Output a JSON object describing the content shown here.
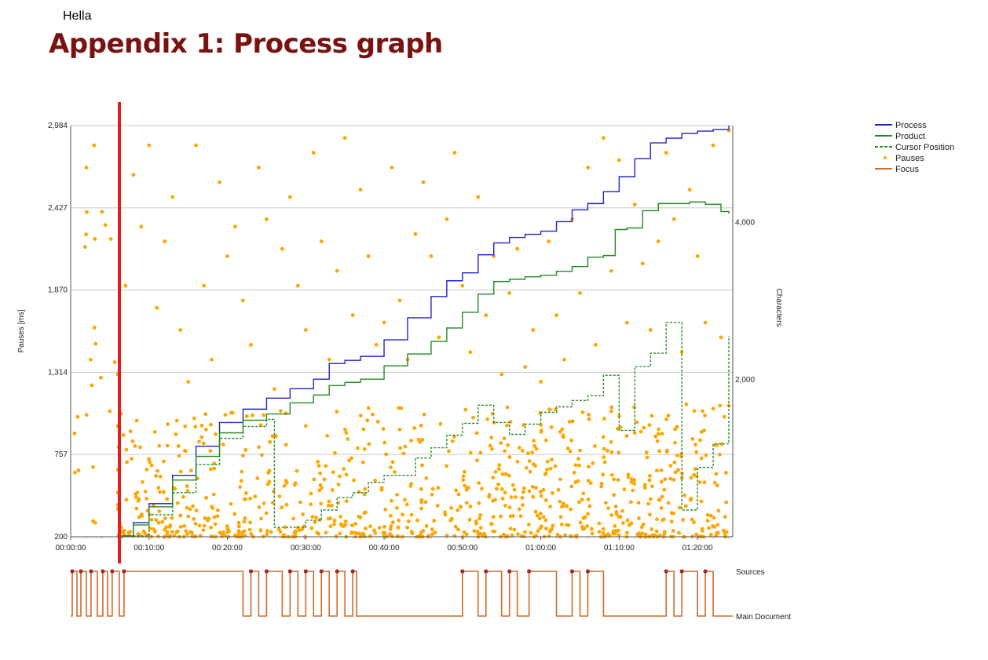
{
  "header": {
    "author": "Hella",
    "title": "Appendix 1: Process graph"
  },
  "chart_data": {
    "type": "line",
    "x_unit": "hh:mm:ss",
    "x_range_minutes": [
      0,
      84.5
    ],
    "x_ticks": [
      "00:00:00",
      "00:10:00",
      "00:20:00",
      "00:30:00",
      "00:40:00",
      "00:50:00",
      "01:00:00",
      "01:10:00",
      "01:20:00"
    ],
    "ylabel_left": "Pauses [ms]",
    "y_left_ticks": [
      "200",
      "757",
      "1,314",
      "1,870",
      "2,427",
      "2,984"
    ],
    "ylim_left": [
      200,
      2984
    ],
    "ylabel_right": "Characters",
    "y_right_ticks": [
      "2,000",
      "4,000"
    ],
    "ylim_right": [
      0,
      5220
    ],
    "legend": {
      "position": "top-right",
      "entries": [
        {
          "label": "Process",
          "color": "#2222cc",
          "style": "solid"
        },
        {
          "label": "Product",
          "color": "#228b22",
          "style": "solid"
        },
        {
          "label": "Cursor Position",
          "color": "#228b22",
          "style": "dashed"
        },
        {
          "label": "Pauses",
          "color": "#ffa500",
          "style": "dot"
        },
        {
          "label": "Focus",
          "color": "#cd6b2a",
          "style": "solid"
        }
      ]
    },
    "series": [
      {
        "name": "Process",
        "color": "#2222cc",
        "x": [
          6.5,
          8,
          10,
          13,
          16,
          19,
          22,
          25,
          28,
          31,
          33,
          35,
          37,
          40,
          43,
          46,
          48,
          50,
          52,
          54,
          56,
          58,
          60,
          62,
          64,
          66,
          68,
          70,
          72,
          74,
          76,
          78,
          80,
          82,
          84
        ],
        "y": [
          10,
          180,
          420,
          780,
          1150,
          1450,
          1620,
          1760,
          1880,
          2000,
          2200,
          2240,
          2290,
          2500,
          2780,
          3050,
          3250,
          3350,
          3580,
          3730,
          3800,
          3840,
          3880,
          4000,
          4150,
          4230,
          4380,
          4570,
          4800,
          5000,
          5060,
          5120,
          5150,
          5170,
          5220
        ]
      },
      {
        "name": "Product",
        "color": "#228b22",
        "x": [
          6.5,
          8,
          10,
          13,
          16,
          19,
          22,
          25,
          28,
          31,
          33,
          35,
          37,
          40,
          43,
          46,
          48,
          50,
          52,
          54,
          56,
          58,
          60,
          62,
          64,
          66,
          68,
          69.5,
          71,
          73,
          75,
          77,
          79,
          81,
          83,
          84
        ],
        "y": [
          10,
          150,
          380,
          720,
          1020,
          1320,
          1480,
          1560,
          1700,
          1800,
          1920,
          1960,
          2000,
          2170,
          2320,
          2480,
          2650,
          2850,
          3080,
          3240,
          3270,
          3300,
          3320,
          3370,
          3430,
          3550,
          3570,
          3900,
          3920,
          4140,
          4230,
          4230,
          4250,
          4220,
          4130,
          4100
        ]
      },
      {
        "name": "Cursor Position",
        "color": "#228b22",
        "x": [
          6.5,
          10,
          13,
          16,
          19,
          22,
          25,
          26,
          30,
          32,
          34,
          36,
          38,
          40,
          44,
          46,
          48,
          50,
          52,
          54,
          56,
          58,
          60,
          62,
          64,
          66,
          68,
          70,
          72,
          74,
          76,
          78,
          80,
          82,
          84
        ],
        "y": [
          10,
          280,
          560,
          920,
          1250,
          1400,
          1490,
          120,
          210,
          340,
          500,
          560,
          690,
          780,
          1000,
          1130,
          1290,
          1440,
          1670,
          1450,
          1300,
          1430,
          1580,
          1650,
          1730,
          1790,
          2050,
          1350,
          2160,
          2330,
          2720,
          340,
          880,
          1180,
          2550
        ]
      },
      {
        "name": "Pauses",
        "color": "#ffa500",
        "type": "scatter",
        "points": [
          [
            0.5,
            900
          ],
          [
            1,
            650
          ],
          [
            2,
            2700
          ],
          [
            3,
            2850
          ],
          [
            4,
            2400
          ],
          [
            5,
            1050
          ],
          [
            6,
            1300
          ],
          [
            7,
            1900
          ],
          [
            8,
            2650
          ],
          [
            9,
            2300
          ],
          [
            10,
            2850
          ],
          [
            11,
            1750
          ],
          [
            12,
            2200
          ],
          [
            13,
            2500
          ],
          [
            14,
            1600
          ],
          [
            15,
            1250
          ],
          [
            16,
            2850
          ],
          [
            17,
            1900
          ],
          [
            18,
            1400
          ],
          [
            19,
            2600
          ],
          [
            20,
            2100
          ],
          [
            21,
            2300
          ],
          [
            22,
            1800
          ],
          [
            23,
            1500
          ],
          [
            24,
            2700
          ],
          [
            25,
            2350
          ],
          [
            26,
            1200
          ],
          [
            27,
            2150
          ],
          [
            28,
            2500
          ],
          [
            29,
            1900
          ],
          [
            30,
            1600
          ],
          [
            31,
            2800
          ],
          [
            32,
            2200
          ],
          [
            33,
            1400
          ],
          [
            34,
            2000
          ],
          [
            35,
            2900
          ],
          [
            36,
            1700
          ],
          [
            37,
            2550
          ],
          [
            38,
            2100
          ],
          [
            39,
            1500
          ],
          [
            40,
            1650
          ],
          [
            41,
            2700
          ],
          [
            42,
            1800
          ],
          [
            43,
            1400
          ],
          [
            44,
            2250
          ],
          [
            45,
            2600
          ],
          [
            46,
            2100
          ],
          [
            47,
            1550
          ],
          [
            48,
            2350
          ],
          [
            49,
            2800
          ],
          [
            50,
            1900
          ],
          [
            51,
            1450
          ],
          [
            52,
            2500
          ],
          [
            53,
            1700
          ],
          [
            54,
            2100
          ],
          [
            55,
            1300
          ],
          [
            56,
            1850
          ],
          [
            57,
            2150
          ],
          [
            58,
            1350
          ],
          [
            59,
            1600
          ],
          [
            60,
            1250
          ],
          [
            61,
            2200
          ],
          [
            62,
            1700
          ],
          [
            63,
            1400
          ],
          [
            64,
            2350
          ],
          [
            65,
            1850
          ],
          [
            66,
            2700
          ],
          [
            67,
            1500
          ],
          [
            68,
            2900
          ],
          [
            69,
            2000
          ],
          [
            70,
            2750
          ],
          [
            71,
            1650
          ],
          [
            72,
            2450
          ],
          [
            73,
            2050
          ],
          [
            74,
            1600
          ],
          [
            75,
            2200
          ],
          [
            76,
            2800
          ],
          [
            77,
            2350
          ],
          [
            78,
            1450
          ],
          [
            79,
            2550
          ],
          [
            80,
            2100
          ],
          [
            81,
            1650
          ],
          [
            82,
            2850
          ],
          [
            83,
            1550
          ],
          [
            84,
            2950
          ]
        ]
      }
    ],
    "focus_track": {
      "labels": [
        "Sources",
        "Main Document"
      ]
    }
  }
}
